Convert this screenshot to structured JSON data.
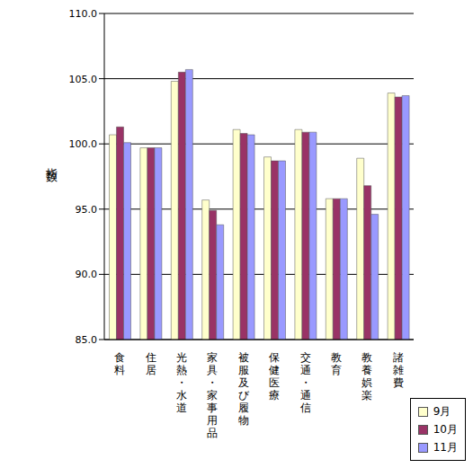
{
  "chart_data": {
    "type": "bar",
    "y_label": "指数",
    "categories": [
      "食料",
      "住居",
      "光熱・水道",
      "家具・家事用品",
      "被服及び履物",
      "保健医療",
      "交通・通信",
      "教育",
      "教養娯楽",
      "諸雑費"
    ],
    "series": [
      {
        "name": "9月",
        "color": "#ffffcc",
        "values": [
          100.7,
          99.7,
          104.8,
          95.7,
          101.1,
          99.0,
          101.1,
          95.8,
          98.9,
          103.9
        ]
      },
      {
        "name": "10月",
        "color": "#993366",
        "values": [
          101.3,
          99.7,
          105.5,
          94.9,
          100.8,
          98.7,
          100.9,
          95.8,
          96.8,
          103.6
        ]
      },
      {
        "name": "11月",
        "color": "#9999ff",
        "values": [
          100.1,
          99.7,
          105.7,
          93.8,
          100.7,
          98.7,
          100.9,
          95.8,
          94.6,
          103.7
        ]
      }
    ],
    "ylim": [
      85,
      110
    ],
    "yticks": [
      {
        "value": 85,
        "label": "85.0"
      },
      {
        "value": 90,
        "label": "90.0"
      },
      {
        "value": 95,
        "label": "95.0"
      },
      {
        "value": 100,
        "label": "100.0"
      },
      {
        "value": 105,
        "label": "105.0"
      },
      {
        "value": 110,
        "label": "110.0"
      }
    ],
    "grid": true,
    "legend": "lower right"
  }
}
